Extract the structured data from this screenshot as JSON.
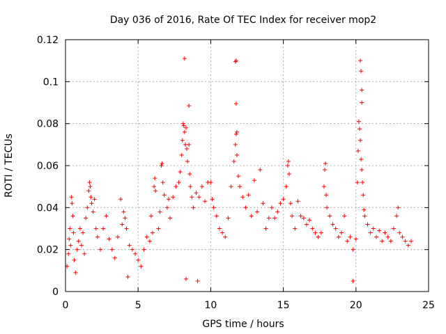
{
  "chart_data": {
    "type": "scatter",
    "title": "Day 036 of 2016, Rate Of TEC Index for receiver mop2",
    "xlabel": "GPS time / hours",
    "ylabel": "ROTI / TECUs",
    "xlim": [
      0,
      25
    ],
    "ylim": [
      0,
      0.12
    ],
    "xticks": [
      0,
      5,
      10,
      15,
      20,
      25
    ],
    "yticks": [
      0,
      0.02,
      0.04,
      0.06,
      0.08,
      0.1,
      0.12
    ],
    "xtick_labels": [
      "0",
      "5",
      "10",
      "15",
      "20",
      "25"
    ],
    "ytick_labels": [
      "0",
      "0.02",
      "0.04",
      "0.06",
      "0.08",
      "0.1",
      "0.12"
    ],
    "grid": true,
    "marker": "+",
    "color": "#ff0000",
    "series": [
      {
        "name": "mop2",
        "points": [
          [
            0.1,
            0.012
          ],
          [
            0.2,
            0.018
          ],
          [
            0.25,
            0.025
          ],
          [
            0.3,
            0.03
          ],
          [
            0.35,
            0.022
          ],
          [
            0.4,
            0.045
          ],
          [
            0.45,
            0.042
          ],
          [
            0.5,
            0.036
          ],
          [
            0.55,
            0.028
          ],
          [
            0.6,
            0.015
          ],
          [
            0.7,
            0.009
          ],
          [
            0.8,
            0.02
          ],
          [
            0.9,
            0.024
          ],
          [
            1.0,
            0.03
          ],
          [
            1.1,
            0.022
          ],
          [
            1.2,
            0.028
          ],
          [
            1.3,
            0.018
          ],
          [
            1.4,
            0.035
          ],
          [
            1.5,
            0.04
          ],
          [
            1.6,
            0.048
          ],
          [
            1.65,
            0.052
          ],
          [
            1.7,
            0.05
          ],
          [
            1.75,
            0.045
          ],
          [
            1.8,
            0.042
          ],
          [
            1.9,
            0.038
          ],
          [
            2.0,
            0.044
          ],
          [
            2.1,
            0.03
          ],
          [
            2.2,
            0.026
          ],
          [
            2.4,
            0.02
          ],
          [
            2.6,
            0.03
          ],
          [
            2.8,
            0.036
          ],
          [
            3.0,
            0.025
          ],
          [
            3.2,
            0.02
          ],
          [
            3.4,
            0.016
          ],
          [
            3.6,
            0.026
          ],
          [
            3.8,
            0.044
          ],
          [
            3.9,
            0.032
          ],
          [
            4.0,
            0.038
          ],
          [
            4.1,
            0.035
          ],
          [
            4.2,
            0.03
          ],
          [
            4.4,
            0.022
          ],
          [
            4.6,
            0.02
          ],
          [
            4.8,
            0.018
          ],
          [
            5.0,
            0.015
          ],
          [
            5.2,
            0.012
          ],
          [
            5.4,
            0.02
          ],
          [
            5.6,
            0.026
          ],
          [
            5.8,
            0.024
          ],
          [
            5.9,
            0.036
          ],
          [
            6.0,
            0.028
          ],
          [
            6.1,
            0.05
          ],
          [
            6.15,
            0.054
          ],
          [
            6.2,
            0.048
          ],
          [
            6.4,
            0.03
          ],
          [
            6.5,
            0.038
          ],
          [
            6.6,
            0.06
          ],
          [
            6.65,
            0.061
          ],
          [
            6.7,
            0.052
          ],
          [
            6.8,
            0.046
          ],
          [
            7.0,
            0.04
          ],
          [
            7.1,
            0.044
          ],
          [
            7.2,
            0.035
          ],
          [
            7.4,
            0.045
          ],
          [
            7.6,
            0.05
          ],
          [
            7.8,
            0.052
          ],
          [
            7.9,
            0.057
          ],
          [
            8.0,
            0.065
          ],
          [
            8.05,
            0.072
          ],
          [
            8.1,
            0.08
          ],
          [
            8.15,
            0.079
          ],
          [
            8.2,
            0.076
          ],
          [
            8.25,
            0.07
          ],
          [
            8.3,
            0.078
          ],
          [
            8.35,
            0.068
          ],
          [
            8.4,
            0.062
          ],
          [
            8.5,
            0.07
          ],
          [
            8.55,
            0.056
          ],
          [
            8.6,
            0.05
          ],
          [
            8.2,
            0.111
          ],
          [
            8.5,
            0.0885
          ],
          [
            8.7,
            0.045
          ],
          [
            8.8,
            0.04
          ],
          [
            9.0,
            0.047
          ],
          [
            9.2,
            0.045
          ],
          [
            9.4,
            0.05
          ],
          [
            9.6,
            0.043
          ],
          [
            9.8,
            0.052
          ],
          [
            10.0,
            0.052
          ],
          [
            10.1,
            0.044
          ],
          [
            10.2,
            0.04
          ],
          [
            10.4,
            0.036
          ],
          [
            10.6,
            0.03
          ],
          [
            10.8,
            0.028
          ],
          [
            11.0,
            0.026
          ],
          [
            11.2,
            0.035
          ],
          [
            11.4,
            0.05
          ],
          [
            11.6,
            0.062
          ],
          [
            11.7,
            0.07
          ],
          [
            11.75,
            0.075
          ],
          [
            11.8,
            0.065
          ],
          [
            11.7,
            0.1095
          ],
          [
            11.75,
            0.11
          ],
          [
            11.75,
            0.0895
          ],
          [
            11.8,
            0.076
          ],
          [
            11.9,
            0.055
          ],
          [
            12.0,
            0.05
          ],
          [
            12.2,
            0.045
          ],
          [
            12.4,
            0.04
          ],
          [
            12.6,
            0.046
          ],
          [
            12.8,
            0.036
          ],
          [
            13.0,
            0.053
          ],
          [
            13.2,
            0.038
          ],
          [
            13.4,
            0.058
          ],
          [
            13.6,
            0.042
          ],
          [
            13.8,
            0.03
          ],
          [
            14.0,
            0.035
          ],
          [
            14.2,
            0.04
          ],
          [
            14.4,
            0.035
          ],
          [
            14.6,
            0.038
          ],
          [
            14.8,
            0.042
          ],
          [
            15.0,
            0.044
          ],
          [
            15.2,
            0.05
          ],
          [
            15.3,
            0.06
          ],
          [
            15.35,
            0.062
          ],
          [
            15.4,
            0.056
          ],
          [
            15.5,
            0.042
          ],
          [
            15.6,
            0.036
          ],
          [
            15.8,
            0.03
          ],
          [
            16.0,
            0.043
          ],
          [
            16.2,
            0.036
          ],
          [
            16.4,
            0.035
          ],
          [
            16.6,
            0.032
          ],
          [
            16.8,
            0.034
          ],
          [
            17.0,
            0.03
          ],
          [
            17.2,
            0.028
          ],
          [
            17.4,
            0.026
          ],
          [
            17.6,
            0.028
          ],
          [
            17.8,
            0.05
          ],
          [
            17.85,
            0.058
          ],
          [
            17.9,
            0.061
          ],
          [
            17.95,
            0.046
          ],
          [
            18.0,
            0.04
          ],
          [
            18.2,
            0.036
          ],
          [
            18.4,
            0.032
          ],
          [
            18.6,
            0.03
          ],
          [
            18.8,
            0.026
          ],
          [
            19.0,
            0.028
          ],
          [
            19.2,
            0.036
          ],
          [
            19.4,
            0.024
          ],
          [
            19.6,
            0.026
          ],
          [
            19.8,
            0.02
          ],
          [
            20.0,
            0.025
          ],
          [
            20.1,
            0.052
          ],
          [
            20.15,
            0.067
          ],
          [
            20.2,
            0.081
          ],
          [
            20.25,
            0.0775
          ],
          [
            20.3,
            0.072
          ],
          [
            20.35,
            0.063
          ],
          [
            20.4,
            0.058
          ],
          [
            20.45,
            0.052
          ],
          [
            20.5,
            0.046
          ],
          [
            20.55,
            0.039
          ],
          [
            20.6,
            0.036
          ],
          [
            20.3,
            0.11
          ],
          [
            20.35,
            0.105
          ],
          [
            20.4,
            0.096
          ],
          [
            20.4,
            0.09
          ],
          [
            20.8,
            0.032
          ],
          [
            21.0,
            0.028
          ],
          [
            21.2,
            0.03
          ],
          [
            21.4,
            0.026
          ],
          [
            21.6,
            0.029
          ],
          [
            21.8,
            0.024
          ],
          [
            22.0,
            0.028
          ],
          [
            22.2,
            0.026
          ],
          [
            22.4,
            0.024
          ],
          [
            22.6,
            0.03
          ],
          [
            22.8,
            0.036
          ],
          [
            22.9,
            0.04
          ],
          [
            23.0,
            0.028
          ],
          [
            23.2,
            0.026
          ],
          [
            23.4,
            0.024
          ],
          [
            23.6,
            0.022
          ],
          [
            23.8,
            0.024
          ],
          [
            19.8,
            0.005
          ],
          [
            9.1,
            0.005
          ],
          [
            8.3,
            0.006
          ],
          [
            4.3,
            0.007
          ]
        ]
      }
    ]
  }
}
